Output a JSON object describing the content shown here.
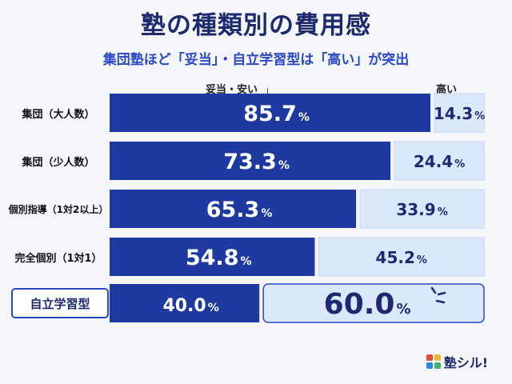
{
  "header": {
    "title": "塾の種類別の費用感",
    "subtitle": "集団塾ほど「妥当」・自立学習型は「高い」が突出"
  },
  "columns": {
    "left": "妥当・安い",
    "right": "高い"
  },
  "logo": {
    "text": "塾シル!"
  },
  "colors": {
    "dark": "#1e3aa0",
    "light": "#dbe8fb",
    "highlight_border": "#2a48c4",
    "title": "#1e2a6e"
  },
  "chart_data": {
    "type": "bar",
    "stacked": true,
    "orientation": "horizontal",
    "unit": "%",
    "categories": [
      "集団（大人数）",
      "集団（少人数）",
      "個別指導（1対2以上）",
      "完全個別（1対1）",
      "自立学習型"
    ],
    "series": [
      {
        "name": "妥当・安い",
        "values": [
          85.7,
          73.3,
          65.3,
          54.8,
          40.0
        ]
      },
      {
        "name": "高い",
        "values": [
          14.3,
          24.4,
          33.9,
          45.2,
          60.0
        ]
      }
    ],
    "value_labels": {
      "left": [
        "85.7",
        "73.3",
        "65.3",
        "54.8",
        "40.0"
      ],
      "right": [
        "14.3",
        "24.4",
        "33.9",
        "45.2",
        "60.0"
      ]
    },
    "highlight_category": "自立学習型"
  }
}
